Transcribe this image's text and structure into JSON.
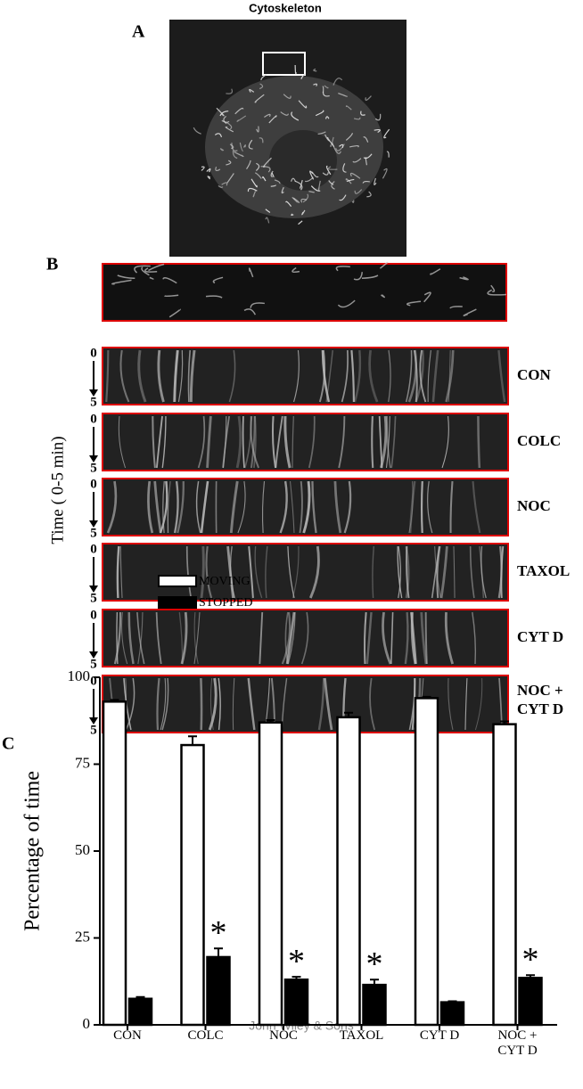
{
  "figure_title": "Cytoskeleton",
  "panel_labels": [
    "A",
    "B",
    "C"
  ],
  "time_axis_label": "Time ( 0-5 min)",
  "time_start": "0",
  "time_end": "5",
  "kymograph_labels": [
    "CON",
    "COLC",
    "NOC",
    "TAXOL",
    "CYT D",
    "NOC +\nCYT D"
  ],
  "watermark": "John Wiley & Sons",
  "chart_data": {
    "type": "bar",
    "ylabel": "Percentage of time",
    "categories": [
      "CON",
      "COLC",
      "NOC",
      "TAXOL",
      "CYT D",
      "NOC +\nCYT D"
    ],
    "series": [
      {
        "name": "MOVING",
        "color": "#ffffff",
        "values": [
          93,
          80.5,
          87,
          88.5,
          94,
          86.5
        ],
        "errors": [
          0.5,
          2.5,
          0.7,
          1.3,
          0.4,
          0.8
        ]
      },
      {
        "name": "STOPPED",
        "color": "#000000",
        "values": [
          7.5,
          19.5,
          13,
          11.5,
          6.5,
          13.5
        ],
        "errors": [
          0.5,
          2.5,
          0.8,
          1.5,
          0.3,
          0.8
        ]
      }
    ],
    "significance": [
      null,
      "*",
      "*",
      "*",
      null,
      "*"
    ],
    "ylim": [
      0,
      100
    ],
    "yticks": [
      0,
      25,
      50,
      75,
      100
    ]
  }
}
